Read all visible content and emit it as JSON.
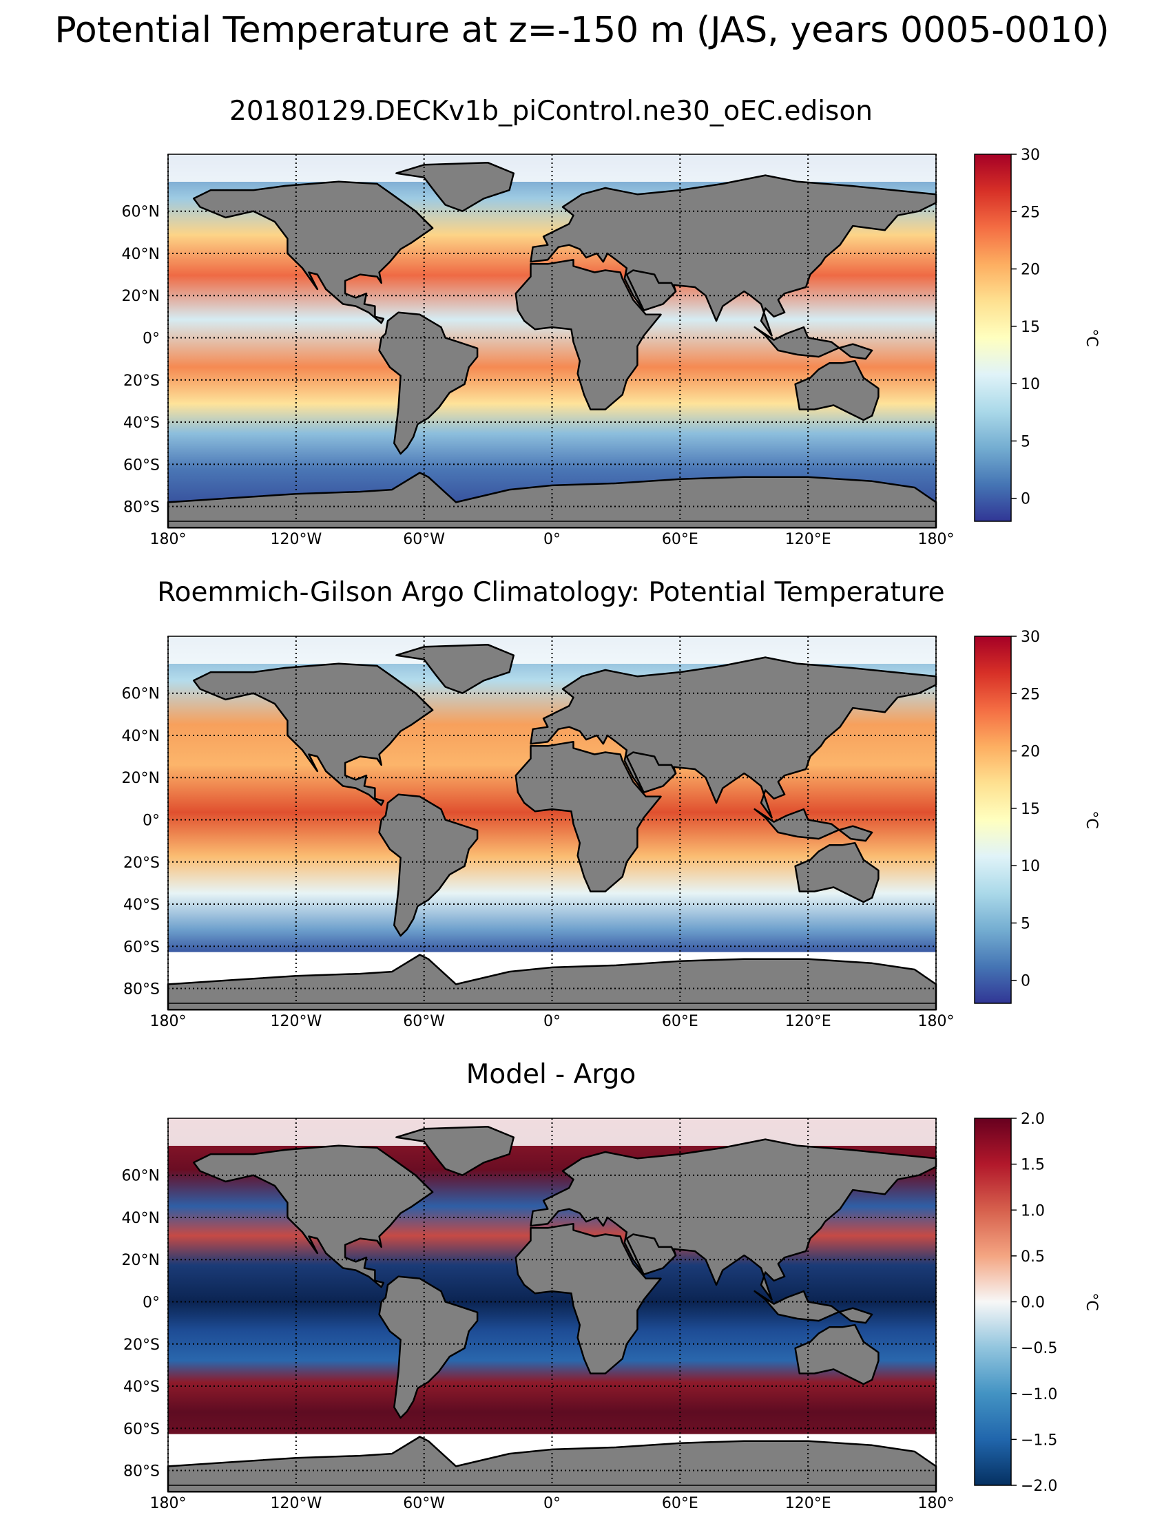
{
  "figure": {
    "title": "Potential Temperature at z=-150 m (JAS, years 0005-0010)"
  },
  "map": {
    "lon_ticks": [
      "180°",
      "120°W",
      "60°W",
      "0°",
      "60°E",
      "120°E",
      "180°"
    ],
    "lat_ticks": [
      "60°N",
      "40°N",
      "20°N",
      "0°",
      "20°S",
      "40°S",
      "60°S",
      "80°S"
    ],
    "gridlines": "dotted",
    "land_color": "#808080",
    "missing_color": "#ffffff"
  },
  "panels": [
    {
      "title": "20180129.DECKv1b_piControl.ne30_oEC.edison",
      "colormap": "RdYlBu_r",
      "colorbar": {
        "label": "°C",
        "ticks": [
          "30",
          "25",
          "20",
          "15",
          "10",
          "5",
          "0"
        ],
        "range": [
          -2,
          30
        ]
      }
    },
    {
      "title": "Roemmich-Gilson Argo Climatology: Potential Temperature",
      "colormap": "RdYlBu_r",
      "colorbar": {
        "label": "°C",
        "ticks": [
          "30",
          "25",
          "20",
          "15",
          "10",
          "5",
          "0"
        ],
        "range": [
          -2,
          30
        ]
      }
    },
    {
      "title": "Model - Argo",
      "colormap": "RdBu_r",
      "colorbar": {
        "label": "°C",
        "ticks": [
          "2.0",
          "1.5",
          "1.0",
          "0.5",
          "0.0",
          "−0.5",
          "−1.0",
          "−1.5",
          "−2.0"
        ],
        "range": [
          -2,
          2
        ]
      }
    }
  ]
}
